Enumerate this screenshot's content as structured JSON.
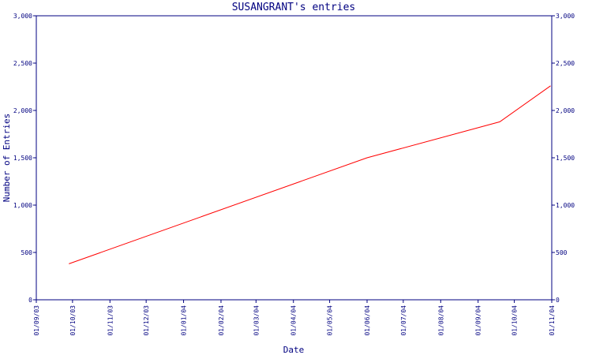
{
  "chart_data": {
    "type": "line",
    "title": "SUSANGRANT's entries",
    "xlabel": "Date",
    "ylabel": "Number of Entries",
    "ylim": [
      0,
      3000
    ],
    "y_ticks": [
      0,
      500,
      1000,
      1500,
      2000,
      2500,
      3000
    ],
    "y_tick_labels": [
      "0",
      "500",
      "1,000",
      "1,500",
      "2,000",
      "2,500",
      "3,000"
    ],
    "x_ticks": [
      "2003-09-01",
      "2003-10-01",
      "2003-11-01",
      "2003-12-01",
      "2004-01-01",
      "2004-02-01",
      "2004-03-01",
      "2004-04-01",
      "2004-05-01",
      "2004-06-01",
      "2004-07-01",
      "2004-08-01",
      "2004-09-01",
      "2004-10-01",
      "2004-11-01"
    ],
    "x_tick_labels": [
      "01/09/03",
      "01/10/03",
      "01/11/03",
      "01/12/03",
      "01/01/04",
      "01/02/04",
      "01/03/04",
      "01/04/04",
      "01/05/04",
      "01/06/04",
      "01/07/04",
      "01/08/04",
      "01/09/04",
      "01/10/04",
      "01/11/04"
    ],
    "grid": false,
    "series": [
      {
        "color": "#ff0000",
        "x": [
          "2003-09-28",
          "2004-06-01",
          "2004-09-19",
          "2004-10-31"
        ],
        "y": [
          380,
          1500,
          1880,
          2260
        ]
      }
    ]
  },
  "colors": {
    "axis": "#000080",
    "text": "#000080",
    "line": "#ff0000",
    "background": "#ffffff"
  }
}
